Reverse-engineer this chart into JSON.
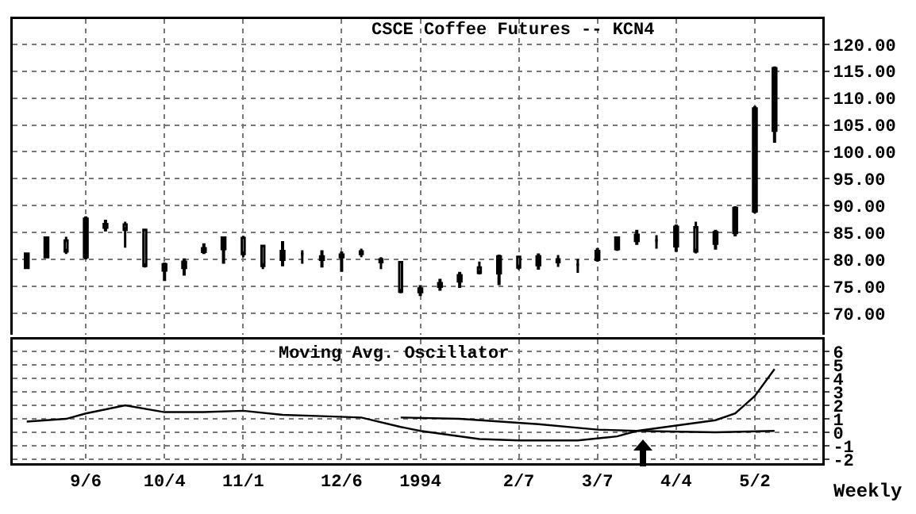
{
  "chart_data": [
    {
      "type": "candlestick",
      "title": "CSCE Coffee Futures -- KCN4",
      "color": "#000000",
      "x": [
        "1993-08-16",
        "1993-08-23",
        "1993-08-30",
        "1993-09-06",
        "1993-09-13",
        "1993-09-20",
        "1993-09-27",
        "1993-10-04",
        "1993-10-11",
        "1993-10-18",
        "1993-10-25",
        "1993-11-01",
        "1993-11-08",
        "1993-11-15",
        "1993-11-22",
        "1993-11-29",
        "1993-12-06",
        "1993-12-13",
        "1993-12-20",
        "1993-12-27",
        "1994-01-03",
        "1994-01-10",
        "1994-01-17",
        "1994-01-24",
        "1994-01-31",
        "1994-02-07",
        "1994-02-14",
        "1994-02-21",
        "1994-02-28",
        "1994-03-07",
        "1994-03-14",
        "1994-03-21",
        "1994-03-28",
        "1994-04-04",
        "1994-04-11",
        "1994-04-18",
        "1994-04-25",
        "1994-05-02",
        "1994-05-09"
      ],
      "ohlc": [
        [
          78.5,
          81.2,
          78.2,
          81.0
        ],
        [
          80.5,
          84.2,
          80.2,
          84.0
        ],
        [
          83.5,
          84.2,
          81.0,
          81.5
        ],
        [
          80.5,
          88.0,
          80.0,
          87.5
        ],
        [
          86.0,
          87.4,
          85.2,
          86.5
        ],
        [
          86.5,
          87.0,
          82.2,
          85.5
        ],
        [
          85.5,
          85.5,
          78.5,
          78.8
        ],
        [
          78.0,
          79.4,
          76.0,
          79.0
        ],
        [
          78.5,
          80.2,
          77.0,
          79.5
        ],
        [
          81.5,
          83.0,
          81.0,
          82.0
        ],
        [
          82.0,
          84.2,
          79.2,
          84.0
        ],
        [
          84.0,
          84.4,
          80.4,
          81.0
        ],
        [
          82.5,
          82.7,
          78.2,
          78.8
        ],
        [
          80.0,
          83.4,
          78.7,
          81.5
        ],
        [
          81.0,
          81.7,
          79.2,
          81.0
        ],
        [
          80.0,
          81.7,
          78.5,
          80.5
        ],
        [
          80.5,
          81.5,
          77.7,
          80.8
        ],
        [
          81.5,
          82.0,
          80.4,
          81.0
        ],
        [
          80.0,
          80.4,
          78.2,
          79.5
        ],
        [
          79.5,
          79.5,
          73.7,
          74.0
        ],
        [
          74.0,
          75.2,
          73.2,
          74.5
        ],
        [
          75.0,
          76.4,
          74.2,
          75.5
        ],
        [
          76.0,
          77.7,
          74.7,
          77.0
        ],
        [
          78.5,
          79.6,
          77.2,
          77.5
        ],
        [
          77.5,
          80.9,
          75.2,
          80.5
        ],
        [
          80.5,
          80.6,
          78.1,
          78.5
        ],
        [
          79.0,
          81.1,
          78.1,
          80.5
        ],
        [
          80.0,
          80.8,
          78.6,
          79.5
        ],
        [
          79.0,
          80.1,
          77.5,
          79.0
        ],
        [
          80.0,
          82.1,
          79.6,
          81.5
        ],
        [
          82.0,
          84.3,
          81.6,
          84.0
        ],
        [
          83.5,
          85.5,
          82.7,
          84.5
        ],
        [
          83.5,
          84.5,
          82.0,
          83.5
        ],
        [
          82.5,
          86.5,
          81.4,
          86.0
        ],
        [
          86.0,
          87.0,
          81.1,
          81.5
        ],
        [
          83.0,
          85.5,
          81.8,
          85.0
        ],
        [
          85.0,
          89.9,
          84.3,
          89.5
        ],
        [
          89.0,
          108.5,
          88.6,
          108.0
        ],
        [
          104.0,
          115.9,
          101.7,
          115.5
        ]
      ],
      "xlim": [
        "1993-08-11",
        "1994-05-26"
      ],
      "xticks": [
        {
          "value": "1993-09-06",
          "label": null
        },
        {
          "value": "1993-10-04",
          "label": null
        },
        {
          "value": "1993-11-01",
          "label": null
        },
        {
          "value": "1993-12-06",
          "label": null
        },
        {
          "value": "1994-01-03",
          "label": null
        },
        {
          "value": "1994-02-07",
          "label": null
        },
        {
          "value": "1994-03-07",
          "label": null
        },
        {
          "value": "1994-04-04",
          "label": null
        },
        {
          "value": "1994-05-02",
          "label": null
        }
      ],
      "ylim": [
        65.7,
        124.7
      ],
      "yticks": [
        {
          "value": 70,
          "label": "70.00"
        },
        {
          "value": 75,
          "label": "75.00"
        },
        {
          "value": 80,
          "label": "80.00"
        },
        {
          "value": 85,
          "label": "85.00"
        },
        {
          "value": 90,
          "label": "90.00"
        },
        {
          "value": 95,
          "label": "95.00"
        },
        {
          "value": 100,
          "label": "100.00"
        },
        {
          "value": 105,
          "label": "105.00"
        },
        {
          "value": 110,
          "label": "110.00"
        },
        {
          "value": 115,
          "label": "115.00"
        },
        {
          "value": 120,
          "label": "120.00"
        }
      ],
      "tick_labels": "y",
      "grid": true
    },
    {
      "type": "line",
      "title": "Moving Avg. Oscillator",
      "annotations": [
        "Weekly"
      ],
      "series": [
        {
          "color": "#000000",
          "x": [
            "1993-08-16",
            "1993-08-30",
            "1993-09-06",
            "1993-09-20",
            "1993-10-04",
            "1993-10-18",
            "1993-11-01",
            "1993-11-15",
            "1993-11-29",
            "1993-12-13",
            "1993-12-27",
            "1994-01-03",
            "1994-01-24",
            "1994-02-07",
            "1994-02-28",
            "1994-03-14",
            "1994-03-21",
            "1994-04-04",
            "1994-04-18",
            "1994-04-25",
            "1994-05-02",
            "1994-05-09"
          ],
          "values": [
            0.8,
            1.0,
            1.4,
            2.0,
            1.5,
            1.5,
            1.6,
            1.3,
            1.2,
            1.1,
            0.4,
            0.1,
            -0.5,
            -0.6,
            -0.6,
            -0.3,
            0.1,
            0.5,
            0.9,
            1.4,
            2.7,
            4.7
          ]
        },
        {
          "color": "#000000",
          "x": [
            "1993-12-27",
            "1994-01-17",
            "1994-02-14",
            "1994-03-07",
            "1994-03-21",
            "1994-04-18",
            "1994-05-09"
          ],
          "values": [
            1.1,
            1.0,
            0.6,
            0.2,
            0.1,
            0.0,
            0.1
          ]
        }
      ],
      "xlim": [
        "1993-08-11",
        "1994-05-26"
      ],
      "xticks": [
        {
          "value": "1993-09-06",
          "label": "9/6"
        },
        {
          "value": "1993-10-04",
          "label": "10/4"
        },
        {
          "value": "1993-11-01",
          "label": "11/1"
        },
        {
          "value": "1993-12-06",
          "label": "12/6"
        },
        {
          "value": "1994-01-03",
          "label": "1994"
        },
        {
          "value": "1994-02-07",
          "label": "2/7"
        },
        {
          "value": "1994-03-07",
          "label": "3/7"
        },
        {
          "value": "1994-04-04",
          "label": "4/4"
        },
        {
          "value": "1994-05-02",
          "label": "5/2"
        }
      ],
      "ylim": [
        -2.3,
        6.9
      ],
      "yticks": [
        -2,
        -1,
        0,
        1,
        2,
        3,
        4,
        5,
        6
      ],
      "grid": true,
      "marker": "none",
      "line_style": "solid"
    }
  ]
}
